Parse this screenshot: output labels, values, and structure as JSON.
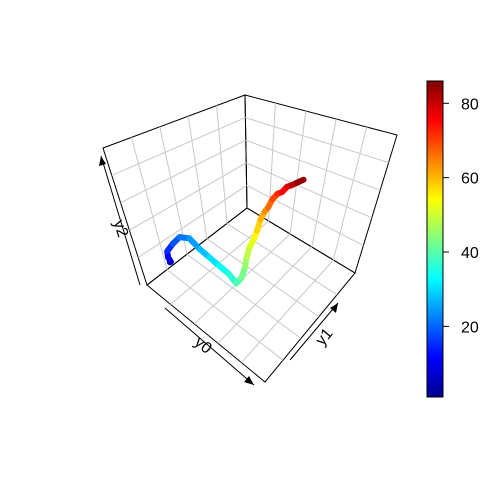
{
  "chart_data": {
    "type": "line3d",
    "title": "",
    "axes": {
      "x": "y0",
      "y": "y1",
      "z": "y2"
    },
    "grid": true,
    "colorbar": {
      "placement": "right",
      "palette": "jet",
      "range": [
        1,
        86
      ],
      "ticks": [
        20,
        40,
        60,
        80
      ],
      "tick_labels": [
        "20",
        "40",
        "60",
        "80"
      ]
    },
    "series": [
      {
        "color_by": "index",
        "points": [
          [
            1,
            0,
            0
          ],
          [
            5,
            -1,
            2
          ],
          [
            9,
            -3,
            6
          ],
          [
            13,
            -4,
            10
          ],
          [
            17,
            -2,
            13
          ],
          [
            20,
            1,
            15
          ],
          [
            23,
            4,
            14
          ],
          [
            26,
            6,
            10
          ],
          [
            29,
            8,
            7
          ],
          [
            32,
            10,
            4
          ],
          [
            35,
            12,
            1
          ],
          [
            38,
            13,
            -2
          ],
          [
            41,
            15,
            0
          ],
          [
            44,
            17,
            4
          ],
          [
            47,
            18,
            8
          ],
          [
            50,
            20,
            12
          ],
          [
            53,
            22,
            15
          ],
          [
            56,
            23,
            18
          ],
          [
            59,
            25,
            22
          ],
          [
            62,
            27,
            25
          ],
          [
            65,
            28,
            27
          ],
          [
            68,
            30,
            30
          ],
          [
            71,
            32,
            32
          ],
          [
            74,
            33,
            33
          ],
          [
            77,
            35,
            35
          ],
          [
            80,
            36,
            36
          ],
          [
            83,
            38,
            37
          ],
          [
            86,
            40,
            38
          ]
        ]
      }
    ]
  }
}
